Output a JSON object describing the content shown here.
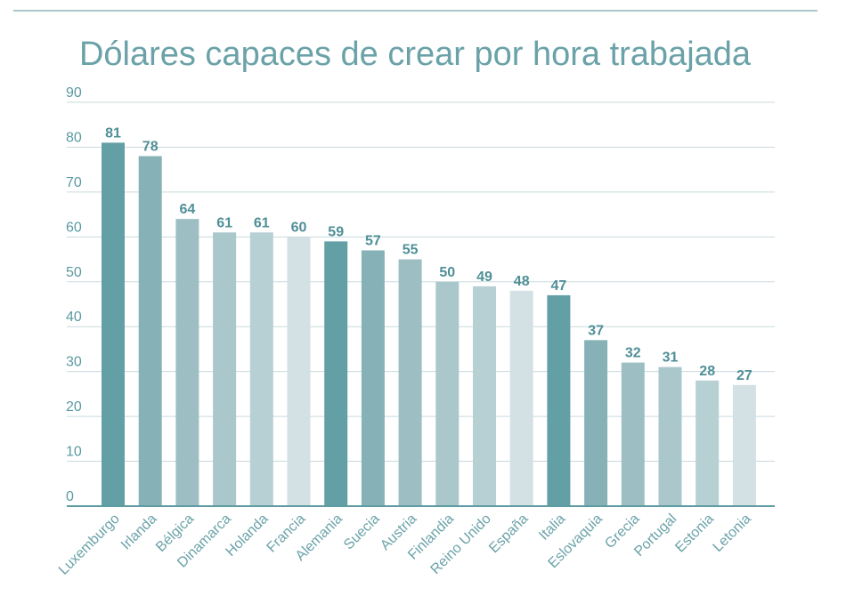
{
  "chart_data": {
    "type": "bar",
    "title": "Dólares capaces de crear por hora trabajada",
    "categories": [
      "Luxemburgo",
      "Irlanda",
      "Bélgica",
      "Dinamarca",
      "Holanda",
      "Francia",
      "Alemania",
      "Suecia",
      "Austria",
      "Finlandia",
      "Reino Unido",
      "España",
      "Italia",
      "Eslovaquia",
      "Grecia",
      "Portugal",
      "Estonia",
      "Letonia"
    ],
    "values": [
      81,
      78,
      64,
      61,
      61,
      60,
      59,
      57,
      55,
      50,
      49,
      48,
      47,
      37,
      32,
      31,
      28,
      27
    ],
    "ylim": [
      0,
      90
    ],
    "yticks": [
      "0",
      "10",
      "20",
      "30",
      "40",
      "50",
      "60",
      "70",
      "80",
      "90"
    ],
    "grid": true,
    "colors": {
      "palette": [
        "#62a0a6",
        "#86b2b7",
        "#9dbfc3",
        "#aac8cc",
        "#b7d0d4",
        "#d3e1e4"
      ],
      "grid": "#c9dadd",
      "axis": "#5e9ca3",
      "top_rule": "#8fb5ba"
    }
  }
}
